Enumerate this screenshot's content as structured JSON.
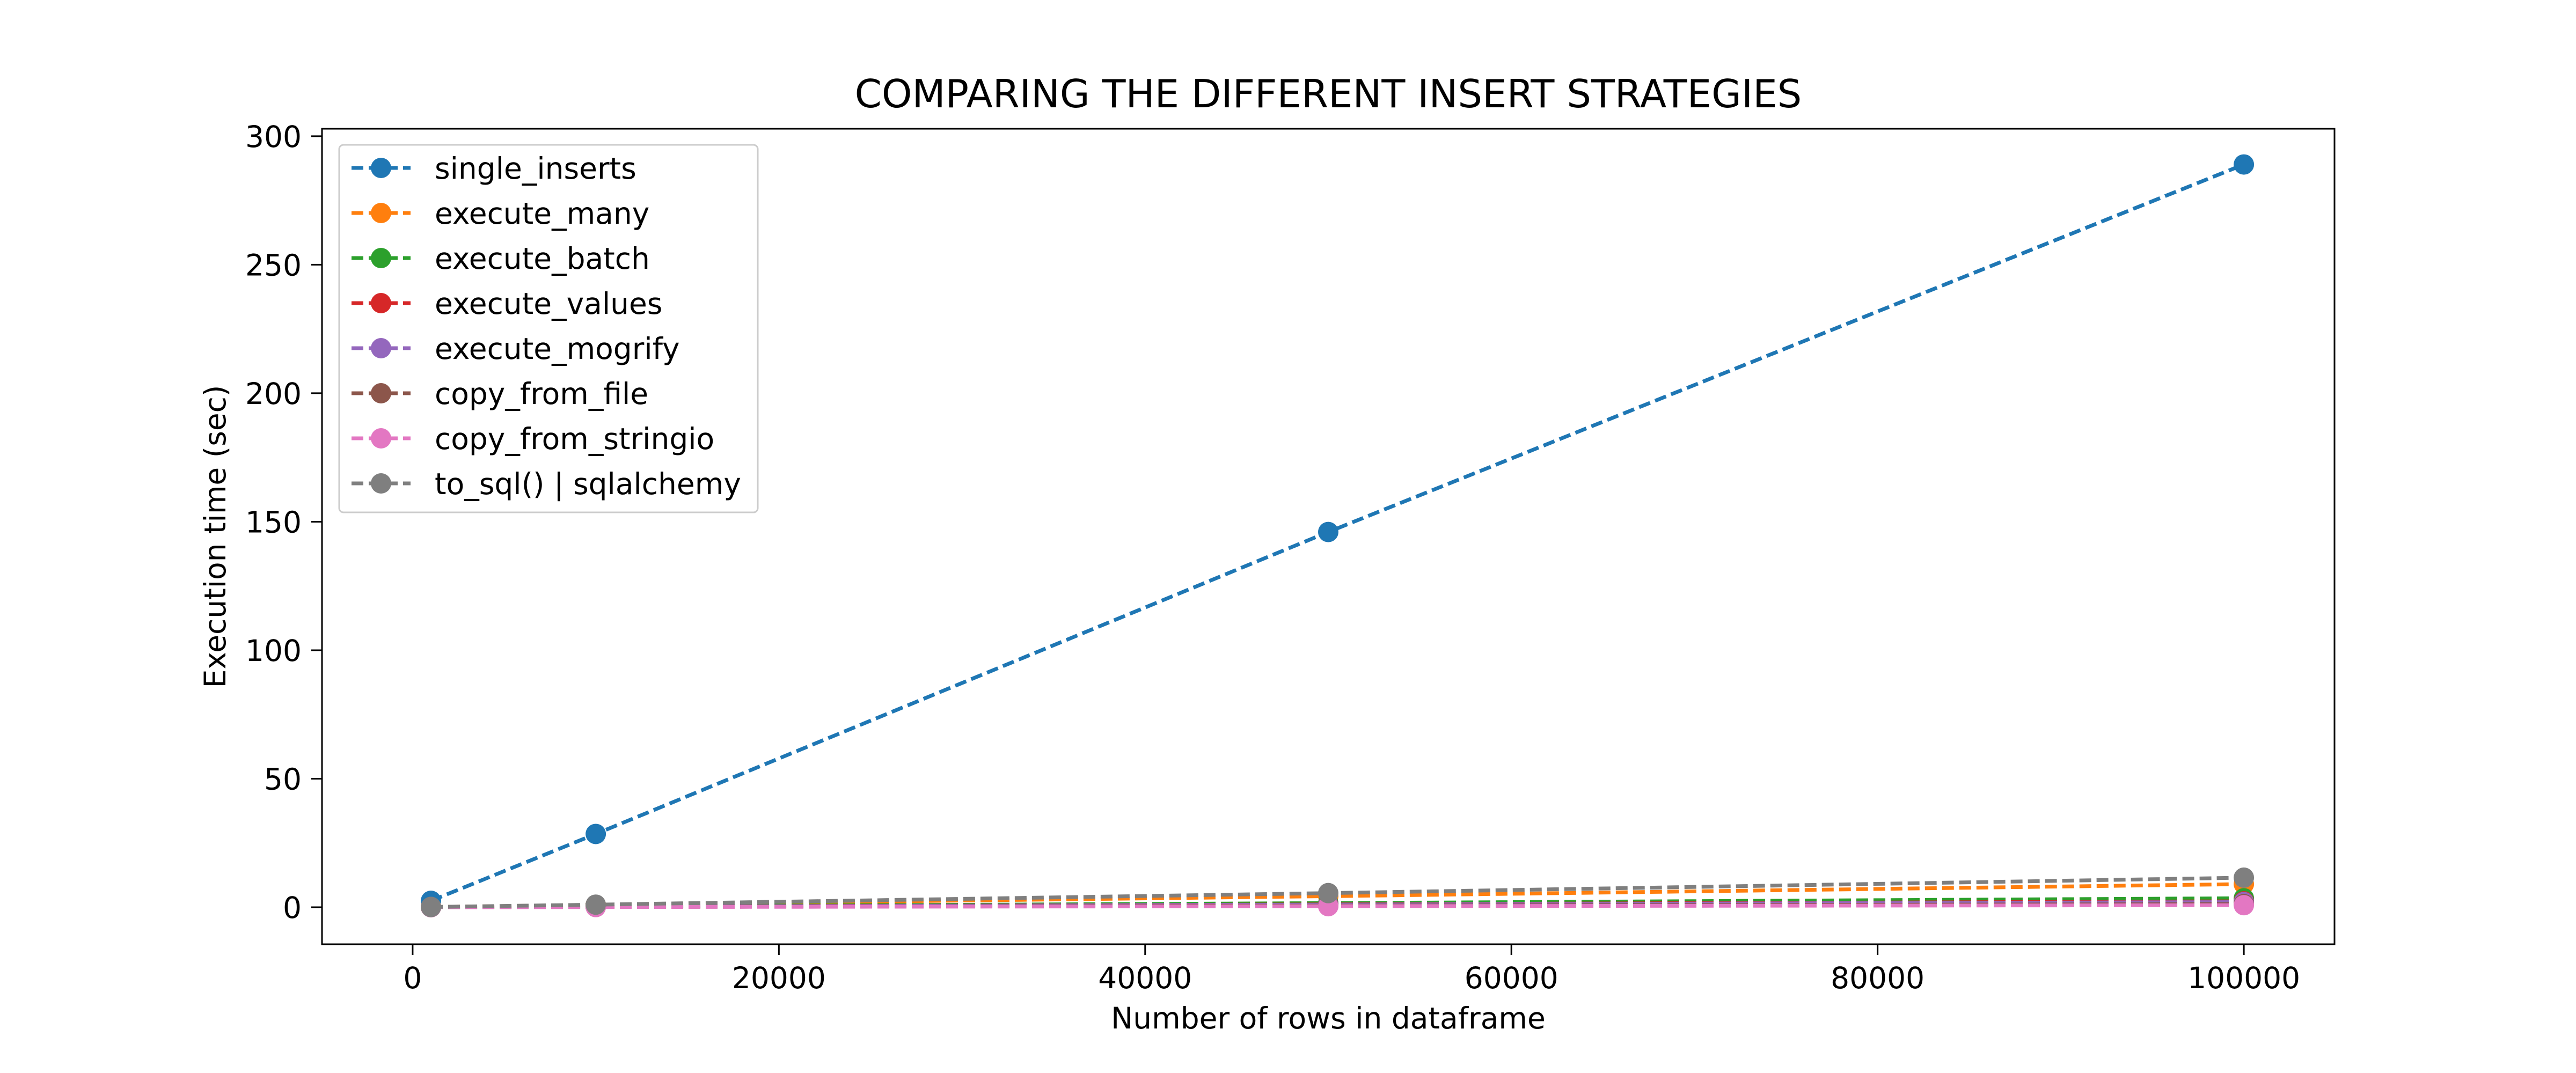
{
  "chart_data": {
    "type": "line",
    "title": "COMPARING THE DIFFERENT INSERT STRATEGIES",
    "xlabel": "Number of rows in dataframe",
    "ylabel": "Execution time (sec)",
    "xlim": [
      -4950,
      104950
    ],
    "ylim": [
      -14.4,
      302.9
    ],
    "x_ticks": [
      0,
      20000,
      40000,
      60000,
      80000,
      100000
    ],
    "y_ticks": [
      0,
      50,
      100,
      150,
      200,
      250,
      300
    ],
    "grid": false,
    "legend_position": "top-left",
    "line_style": "dashed",
    "marker": "circle",
    "x": [
      1000,
      10000,
      50000,
      100000
    ],
    "series": [
      {
        "name": "single_inserts",
        "color": "#1f77b4",
        "values": [
          2.5,
          28.5,
          146.0,
          289.0
        ]
      },
      {
        "name": "execute_many",
        "color": "#ff7f0e",
        "values": [
          0.1,
          0.9,
          4.3,
          9.0
        ]
      },
      {
        "name": "execute_batch",
        "color": "#2ca02c",
        "values": [
          0.05,
          0.3,
          1.6,
          3.5
        ]
      },
      {
        "name": "execute_values",
        "color": "#d62728",
        "values": [
          0.05,
          0.2,
          1.1,
          2.3
        ]
      },
      {
        "name": "execute_mogrify",
        "color": "#9467bd",
        "values": [
          0.05,
          0.2,
          1.0,
          2.0
        ]
      },
      {
        "name": "copy_from_file",
        "color": "#8c564b",
        "values": [
          0.03,
          0.1,
          0.6,
          1.2
        ]
      },
      {
        "name": "copy_from_stringio",
        "color": "#e377c2",
        "values": [
          0.02,
          0.08,
          0.4,
          0.8
        ]
      },
      {
        "name": "to_sql() | sqlalchemy",
        "color": "#7f7f7f",
        "values": [
          0.1,
          1.0,
          5.5,
          11.5
        ]
      }
    ]
  }
}
